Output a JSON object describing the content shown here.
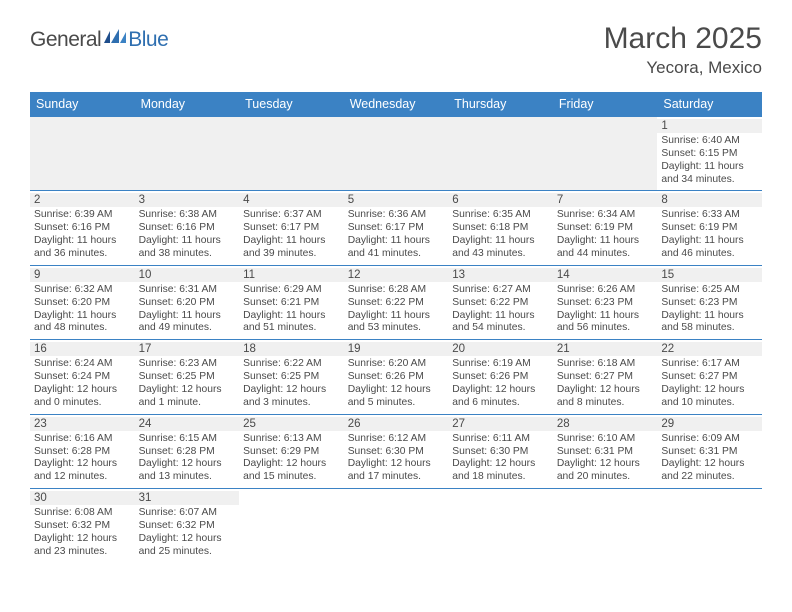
{
  "logo": {
    "word1": "General",
    "word2": "Blue"
  },
  "title": "March 2025",
  "location": "Yecora, Mexico",
  "colors": {
    "header_bg": "#3b82c4",
    "header_text": "#ffffff",
    "daynum_bg": "#f0f0f0",
    "border": "#3b82c4",
    "text": "#4a4a4a",
    "logo_blue": "#2f6fb0"
  },
  "typography": {
    "title_fontsize": 30,
    "location_fontsize": 17,
    "header_fontsize": 12.5,
    "daynum_fontsize": 11.5,
    "info_fontsize": 10.3
  },
  "weekdays": [
    "Sunday",
    "Monday",
    "Tuesday",
    "Wednesday",
    "Thursday",
    "Friday",
    "Saturday"
  ],
  "start_weekday_index": 6,
  "days": [
    {
      "n": 1,
      "sunrise": "6:40 AM",
      "sunset": "6:15 PM",
      "daylight": "11 hours and 34 minutes."
    },
    {
      "n": 2,
      "sunrise": "6:39 AM",
      "sunset": "6:16 PM",
      "daylight": "11 hours and 36 minutes."
    },
    {
      "n": 3,
      "sunrise": "6:38 AM",
      "sunset": "6:16 PM",
      "daylight": "11 hours and 38 minutes."
    },
    {
      "n": 4,
      "sunrise": "6:37 AM",
      "sunset": "6:17 PM",
      "daylight": "11 hours and 39 minutes."
    },
    {
      "n": 5,
      "sunrise": "6:36 AM",
      "sunset": "6:17 PM",
      "daylight": "11 hours and 41 minutes."
    },
    {
      "n": 6,
      "sunrise": "6:35 AM",
      "sunset": "6:18 PM",
      "daylight": "11 hours and 43 minutes."
    },
    {
      "n": 7,
      "sunrise": "6:34 AM",
      "sunset": "6:19 PM",
      "daylight": "11 hours and 44 minutes."
    },
    {
      "n": 8,
      "sunrise": "6:33 AM",
      "sunset": "6:19 PM",
      "daylight": "11 hours and 46 minutes."
    },
    {
      "n": 9,
      "sunrise": "6:32 AM",
      "sunset": "6:20 PM",
      "daylight": "11 hours and 48 minutes."
    },
    {
      "n": 10,
      "sunrise": "6:31 AM",
      "sunset": "6:20 PM",
      "daylight": "11 hours and 49 minutes."
    },
    {
      "n": 11,
      "sunrise": "6:29 AM",
      "sunset": "6:21 PM",
      "daylight": "11 hours and 51 minutes."
    },
    {
      "n": 12,
      "sunrise": "6:28 AM",
      "sunset": "6:22 PM",
      "daylight": "11 hours and 53 minutes."
    },
    {
      "n": 13,
      "sunrise": "6:27 AM",
      "sunset": "6:22 PM",
      "daylight": "11 hours and 54 minutes."
    },
    {
      "n": 14,
      "sunrise": "6:26 AM",
      "sunset": "6:23 PM",
      "daylight": "11 hours and 56 minutes."
    },
    {
      "n": 15,
      "sunrise": "6:25 AM",
      "sunset": "6:23 PM",
      "daylight": "11 hours and 58 minutes."
    },
    {
      "n": 16,
      "sunrise": "6:24 AM",
      "sunset": "6:24 PM",
      "daylight": "12 hours and 0 minutes."
    },
    {
      "n": 17,
      "sunrise": "6:23 AM",
      "sunset": "6:25 PM",
      "daylight": "12 hours and 1 minute."
    },
    {
      "n": 18,
      "sunrise": "6:22 AM",
      "sunset": "6:25 PM",
      "daylight": "12 hours and 3 minutes."
    },
    {
      "n": 19,
      "sunrise": "6:20 AM",
      "sunset": "6:26 PM",
      "daylight": "12 hours and 5 minutes."
    },
    {
      "n": 20,
      "sunrise": "6:19 AM",
      "sunset": "6:26 PM",
      "daylight": "12 hours and 6 minutes."
    },
    {
      "n": 21,
      "sunrise": "6:18 AM",
      "sunset": "6:27 PM",
      "daylight": "12 hours and 8 minutes."
    },
    {
      "n": 22,
      "sunrise": "6:17 AM",
      "sunset": "6:27 PM",
      "daylight": "12 hours and 10 minutes."
    },
    {
      "n": 23,
      "sunrise": "6:16 AM",
      "sunset": "6:28 PM",
      "daylight": "12 hours and 12 minutes."
    },
    {
      "n": 24,
      "sunrise": "6:15 AM",
      "sunset": "6:28 PM",
      "daylight": "12 hours and 13 minutes."
    },
    {
      "n": 25,
      "sunrise": "6:13 AM",
      "sunset": "6:29 PM",
      "daylight": "12 hours and 15 minutes."
    },
    {
      "n": 26,
      "sunrise": "6:12 AM",
      "sunset": "6:30 PM",
      "daylight": "12 hours and 17 minutes."
    },
    {
      "n": 27,
      "sunrise": "6:11 AM",
      "sunset": "6:30 PM",
      "daylight": "12 hours and 18 minutes."
    },
    {
      "n": 28,
      "sunrise": "6:10 AM",
      "sunset": "6:31 PM",
      "daylight": "12 hours and 20 minutes."
    },
    {
      "n": 29,
      "sunrise": "6:09 AM",
      "sunset": "6:31 PM",
      "daylight": "12 hours and 22 minutes."
    },
    {
      "n": 30,
      "sunrise": "6:08 AM",
      "sunset": "6:32 PM",
      "daylight": "12 hours and 23 minutes."
    },
    {
      "n": 31,
      "sunrise": "6:07 AM",
      "sunset": "6:32 PM",
      "daylight": "12 hours and 25 minutes."
    }
  ],
  "labels": {
    "sunrise": "Sunrise:",
    "sunset": "Sunset:",
    "daylight": "Daylight:"
  }
}
